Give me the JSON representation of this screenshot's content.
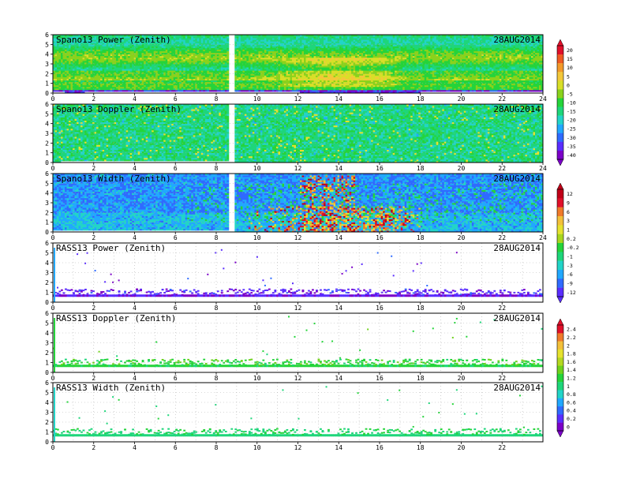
{
  "figure": {
    "date": "28AUG2014"
  },
  "chart_data": [
    {
      "type": "heatmap",
      "title": "Spano13 Power (Zenith)",
      "date": "28AUG2014",
      "x_ticks": [
        0,
        2,
        4,
        6,
        8,
        10,
        12,
        14,
        16,
        18,
        20,
        22,
        24
      ],
      "y_ticks": [
        0,
        1,
        2,
        3,
        4,
        5,
        6
      ],
      "xlim": [
        0,
        24
      ],
      "ylim": [
        0,
        6
      ],
      "grid": true,
      "colorbar_ticks": [
        "20",
        "15",
        "10",
        "5",
        "0",
        "-5",
        "-10",
        "-15",
        "-20",
        "-25",
        "-30",
        "-35",
        "-40"
      ]
    },
    {
      "type": "heatmap",
      "title": "Spano13 Doppler (Zenith)",
      "date": "28AUG2014",
      "x_ticks": [
        0,
        2,
        4,
        6,
        8,
        10,
        12,
        14,
        16,
        18,
        20,
        22,
        24
      ],
      "y_ticks": [
        0,
        1,
        2,
        3,
        4,
        5,
        6
      ],
      "xlim": [
        0,
        24
      ],
      "ylim": [
        0,
        6
      ],
      "grid": true
    },
    {
      "type": "heatmap",
      "title": "Spano13 Width (Zenith)",
      "date": "28AUG2014",
      "x_ticks": [
        0,
        2,
        4,
        6,
        8,
        10,
        12,
        14,
        16,
        18,
        20,
        22,
        24
      ],
      "y_ticks": [
        0,
        1,
        2,
        3,
        4,
        5,
        6
      ],
      "xlim": [
        0,
        24
      ],
      "ylim": [
        0,
        6
      ],
      "grid": true,
      "colorbar_ticks": [
        "12",
        "9",
        "6",
        "3",
        "1",
        "0.2",
        "-0.2",
        "-1",
        "-3",
        "-6",
        "-9",
        "-12"
      ]
    },
    {
      "type": "scatter",
      "title": "RASS13 Power (Zenith)",
      "date": "28AUG2014",
      "x_ticks": [
        0,
        2,
        4,
        6,
        8,
        10,
        12,
        14,
        16,
        18,
        20,
        22
      ],
      "y_ticks": [
        0,
        1,
        2,
        3,
        4,
        5,
        6
      ],
      "xlim": [
        0,
        24
      ],
      "ylim": [
        0,
        6
      ],
      "grid": true
    },
    {
      "type": "scatter",
      "title": "RASS13 Doppler (Zenith)",
      "date": "28AUG2014",
      "x_ticks": [
        0,
        2,
        4,
        6,
        8,
        10,
        12,
        14,
        16,
        18,
        20,
        22
      ],
      "y_ticks": [
        0,
        1,
        2,
        3,
        4,
        5,
        6
      ],
      "xlim": [
        0,
        24
      ],
      "ylim": [
        0,
        6
      ],
      "grid": true,
      "colorbar_ticks": [
        "2.4",
        "2.2",
        "2",
        "1.8",
        "1.6",
        "1.4",
        "1.2",
        "1",
        "0.8",
        "0.6",
        "0.4",
        "0.2",
        "0"
      ]
    },
    {
      "type": "scatter",
      "title": "RASS13 Width (Zenith)",
      "date": "28AUG2014",
      "x_ticks": [
        0,
        2,
        4,
        6,
        8,
        10,
        12,
        14,
        16,
        18,
        20,
        22
      ],
      "y_ticks": [
        0,
        1,
        2,
        3,
        4,
        5,
        6
      ],
      "xlim": [
        0,
        24
      ],
      "ylim": [
        0,
        6
      ],
      "grid": true
    }
  ],
  "colors": {
    "power": [
      "#7b00c8",
      "#5a2dff",
      "#2f6bff",
      "#21a8ff",
      "#22d4c8",
      "#1ed67a",
      "#25d43a",
      "#8ad21c",
      "#d8df28",
      "#f3c83a",
      "#f39a2a",
      "#ef5a22",
      "#e0102a"
    ],
    "width": [
      "#5a2dff",
      "#2f6bff",
      "#21a8ff",
      "#22d4c8",
      "#1ed67a",
      "#25d43a",
      "#a8d61e",
      "#e6e22e",
      "#f3c03a",
      "#f07a2a",
      "#e0102a",
      "#c00018"
    ],
    "doppler_bar": [
      "#7b00c8",
      "#5a2dff",
      "#2f6bff",
      "#21a8ff",
      "#22d4c8",
      "#1ed67a",
      "#25d43a",
      "#6fd21c",
      "#b5d820",
      "#e6e22e",
      "#f3c03a",
      "#f07a2a",
      "#e0102a"
    ]
  }
}
